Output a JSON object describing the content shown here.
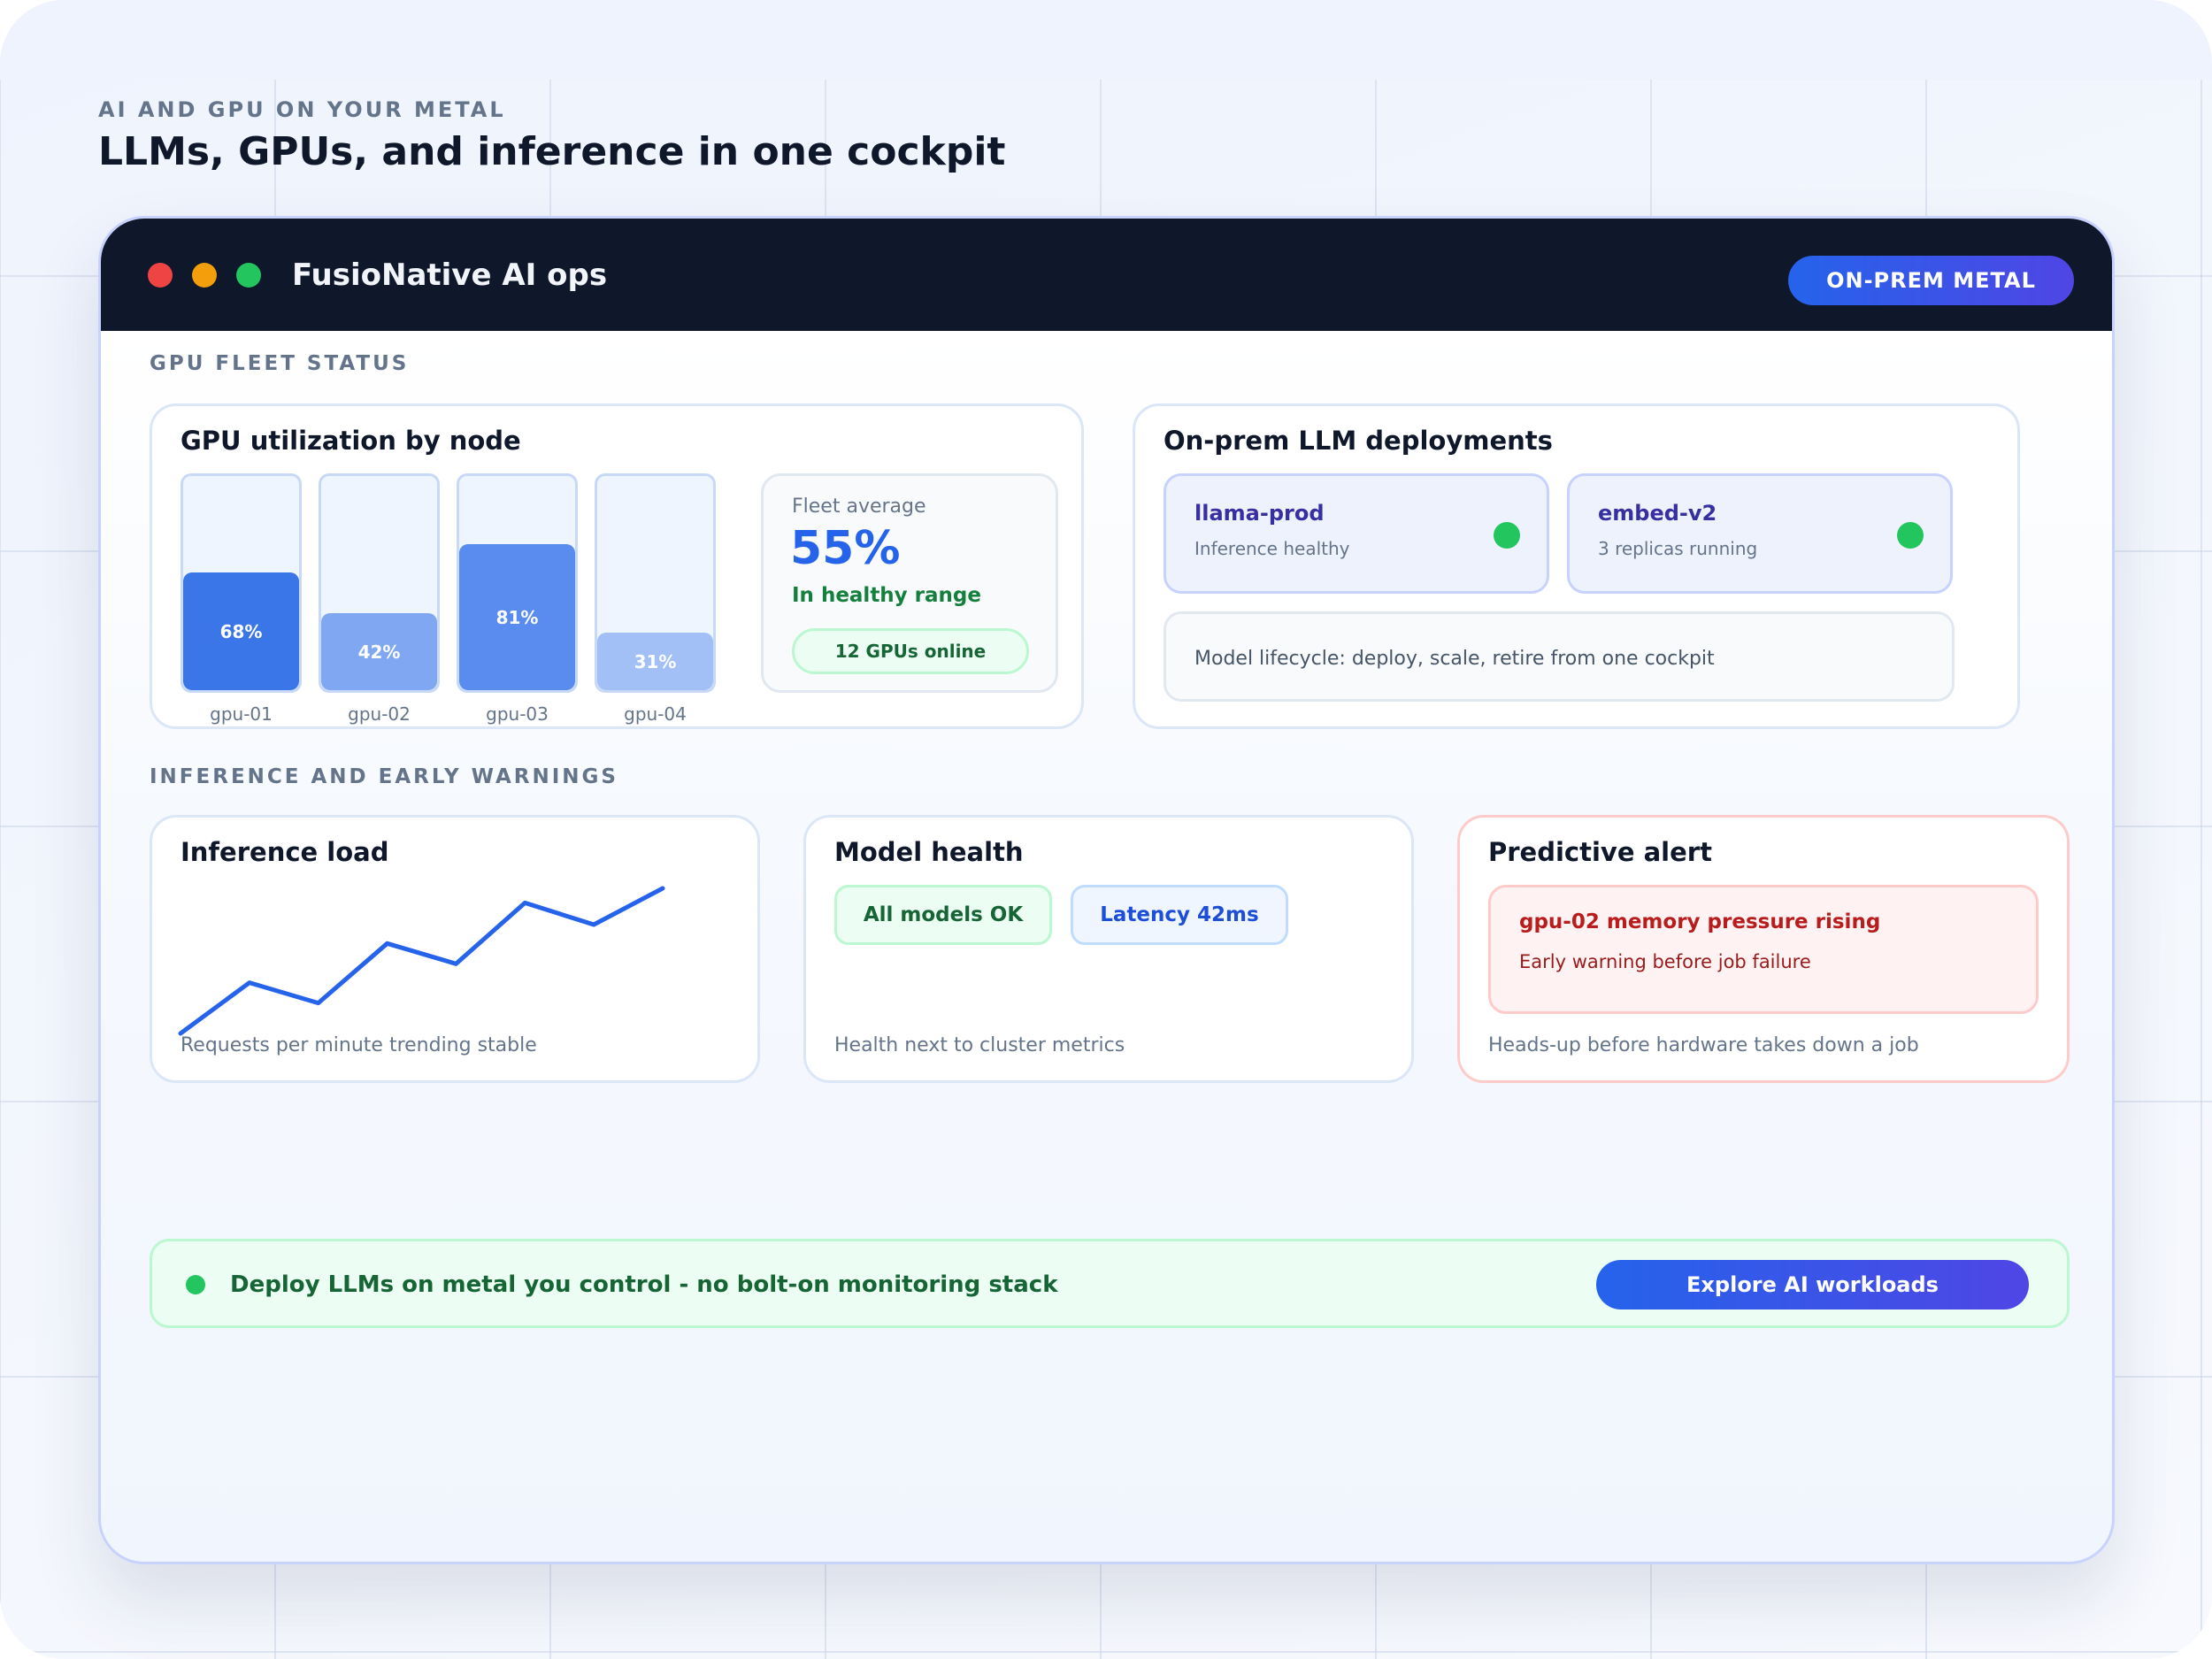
{
  "hero": {
    "eyebrow": "AI AND GPU ON YOUR METAL",
    "title": "LLMs, GPUs, and inference in one cockpit"
  },
  "window": {
    "title": "FusioNative AI ops",
    "badge": "ON-PREM METAL",
    "controls": [
      "close",
      "minimize",
      "maximize"
    ]
  },
  "sections": {
    "fleet": "GPU FLEET STATUS",
    "inference": "INFERENCE AND EARLY WARNINGS"
  },
  "gpu_card": {
    "title": "GPU utilization by node",
    "nodes": [
      {
        "name": "gpu-01",
        "value_label": "68%",
        "fraction": 0.55,
        "color": "#3b76e8"
      },
      {
        "name": "gpu-02",
        "value_label": "42%",
        "fraction": 0.36,
        "color": "#7fa7f2"
      },
      {
        "name": "gpu-03",
        "value_label": "81%",
        "fraction": 0.68,
        "color": "#5a8bef"
      },
      {
        "name": "gpu-04",
        "value_label": "31%",
        "fraction": 0.27,
        "color": "#a2bff6"
      }
    ],
    "fleet_average": {
      "label": "Fleet average",
      "value": "55%",
      "note": "In healthy range",
      "pill": "12 GPUs online"
    }
  },
  "llm_card": {
    "title": "On-prem LLM deployments",
    "deployments": [
      {
        "name": "llama-prod",
        "status": "Inference healthy",
        "status_color": "#22c55e"
      },
      {
        "name": "embed-v2",
        "status": "3 replicas running",
        "status_color": "#22c55e"
      }
    ],
    "lifecycle": "Model lifecycle: deploy, scale, retire from one cockpit"
  },
  "inference_card": {
    "title": "Inference load",
    "caption": "Requests per minute trending stable",
    "trend_points": [
      0.0,
      0.35,
      0.21,
      0.62,
      0.48,
      0.9,
      0.75,
      1.0
    ]
  },
  "health_card": {
    "title": "Model health",
    "status_chip": "All models OK",
    "latency_chip": "Latency 42ms",
    "caption": "Health next to cluster metrics"
  },
  "alert_card": {
    "title": "Predictive alert",
    "alert_title": "gpu-02 memory pressure rising",
    "alert_detail": "Early warning before job failure",
    "caption": "Heads-up before hardware takes down a job"
  },
  "cta": {
    "text": "Deploy LLMs on metal you control - no bolt-on monitoring stack",
    "button": "Explore AI workloads"
  },
  "colors": {
    "accent": "#2563eb",
    "accent_end": "#4f46e5",
    "success": "#22c55e",
    "danger": "#b91c1c",
    "titlebar": "#0f172a"
  }
}
